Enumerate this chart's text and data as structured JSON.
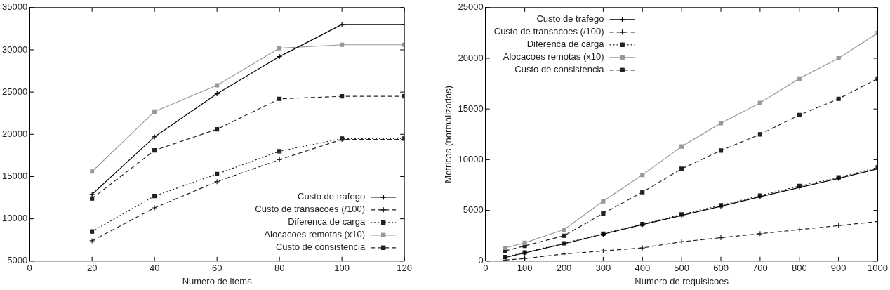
{
  "chart_data": [
    {
      "type": "line",
      "xlabel": "Numero de items",
      "x": [
        20,
        40,
        60,
        80,
        100,
        120
      ],
      "xlim": [
        0,
        120
      ],
      "xticks": [
        0,
        20,
        40,
        60,
        80,
        100,
        120
      ],
      "ylim": [
        5000,
        35000
      ],
      "yticks": [
        5000,
        10000,
        15000,
        20000,
        25000,
        30000,
        35000
      ],
      "grid": false,
      "legend": "bottom right",
      "series": [
        {
          "name": "Custo de trafego",
          "color": "#000000",
          "marker": "cross",
          "line_style": "solid",
          "values": [
            12900,
            19700,
            24800,
            29200,
            33000,
            33000
          ]
        },
        {
          "name": "Custo de transacoes (/100)",
          "color": "#222222",
          "marker": "cross",
          "line_style": "dashed",
          "values": [
            7400,
            11300,
            14400,
            17000,
            19400,
            19400
          ]
        },
        {
          "name": "Diferenca de carga",
          "color": "#222222",
          "marker": "square",
          "line_style": "dotted",
          "values": [
            8500,
            12700,
            15300,
            18000,
            19500,
            19500
          ]
        },
        {
          "name": "Alocacoes remotas (x10)",
          "color": "#999999",
          "marker": "square",
          "line_style": "solid",
          "values": [
            15600,
            22700,
            25800,
            30200,
            30600,
            30600
          ]
        },
        {
          "name": "Custo de consistencia",
          "color": "#222222",
          "marker": "square",
          "line_style": "dashed",
          "values": [
            12400,
            18100,
            20600,
            24200,
            24500,
            24500
          ]
        }
      ]
    },
    {
      "type": "line",
      "xlabel": "Numero de requisicoes",
      "ylabel": "Metricas (normalizadas)",
      "x": [
        50,
        100,
        200,
        300,
        400,
        500,
        600,
        700,
        800,
        900,
        1000
      ],
      "xlim": [
        0,
        1000
      ],
      "xticks": [
        0,
        100,
        200,
        300,
        400,
        500,
        600,
        700,
        800,
        900,
        1000
      ],
      "ylim": [
        0,
        25000
      ],
      "yticks": [
        0,
        5000,
        10000,
        15000,
        20000,
        25000
      ],
      "grid": false,
      "legend": "top left",
      "series": [
        {
          "name": "Custo de trafego",
          "color": "#000000",
          "marker": "cross",
          "line_style": "solid",
          "values": [
            350,
            800,
            1700,
            2650,
            3600,
            4500,
            5400,
            6350,
            7250,
            8150,
            9100
          ]
        },
        {
          "name": "Custo de transacoes (/100)",
          "color": "#222222",
          "marker": "cross",
          "line_style": "dashed",
          "values": [
            100,
            250,
            700,
            1000,
            1300,
            1900,
            2300,
            2700,
            3100,
            3500,
            3900
          ]
        },
        {
          "name": "Diferenca de carga",
          "color": "#222222",
          "marker": "square",
          "line_style": "dotted",
          "values": [
            400,
            850,
            1750,
            2700,
            3650,
            4600,
            5500,
            6450,
            7400,
            8250,
            9250
          ]
        },
        {
          "name": "Alocacoes remotas (x10)",
          "color": "#999999",
          "marker": "square",
          "line_style": "solid",
          "values": [
            1300,
            1800,
            3100,
            5900,
            8500,
            11300,
            13600,
            15600,
            18000,
            20000,
            22500
          ]
        },
        {
          "name": "Custo de consistencia",
          "color": "#222222",
          "marker": "square",
          "line_style": "dashed",
          "values": [
            1000,
            1500,
            2500,
            4700,
            6800,
            9100,
            10900,
            12500,
            14400,
            16000,
            18000
          ]
        }
      ]
    }
  ]
}
